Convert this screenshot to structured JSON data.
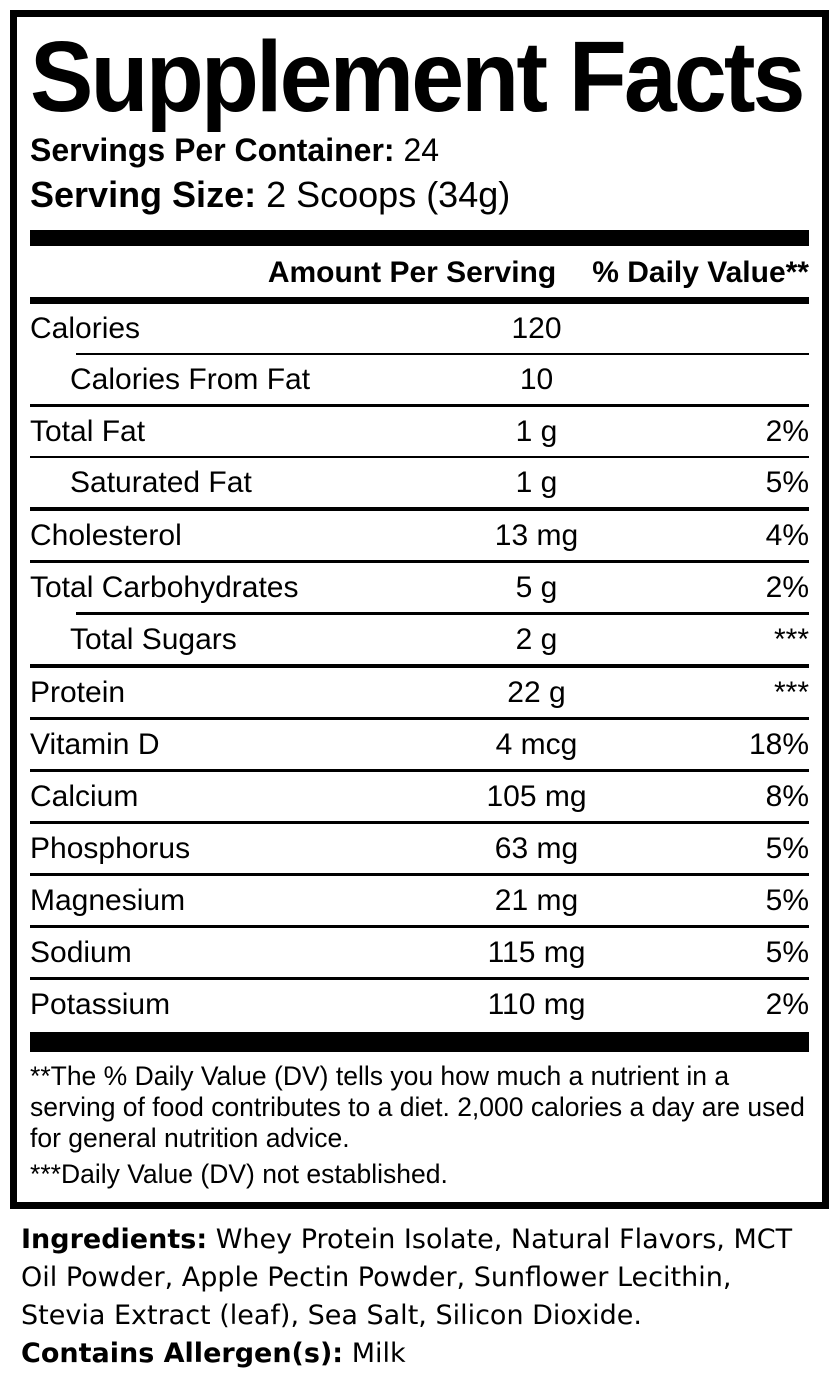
{
  "colors": {
    "text": "#000000",
    "background": "#ffffff",
    "rule": "#000000"
  },
  "supplement": {
    "title": "Supplement Facts",
    "servings_per_container_label": "Servings Per Container:",
    "servings_per_container_value": "24",
    "serving_size_label": "Serving Size:",
    "serving_size_value": "2 Scoops (34g)",
    "col_amount_header": "Amount Per Serving",
    "col_dv_header": "% Daily Value**",
    "rows": [
      {
        "name": "Calories",
        "amount": "120",
        "dv": ""
      },
      {
        "name": "Calories From Fat",
        "amount": "10",
        "dv": ""
      },
      {
        "name": "Total Fat",
        "amount": "1 g",
        "dv": "2%"
      },
      {
        "name": "Saturated Fat",
        "amount": "1 g",
        "dv": "5%"
      },
      {
        "name": "Cholesterol",
        "amount": "13 mg",
        "dv": "4%"
      },
      {
        "name": "Total Carbohydrates",
        "amount": "5 g",
        "dv": "2%"
      },
      {
        "name": "Total Sugars",
        "amount": "2 g",
        "dv": "***"
      },
      {
        "name": "Protein",
        "amount": "22 g",
        "dv": "***"
      },
      {
        "name": "Vitamin D",
        "amount": "4 mcg",
        "dv": "18%"
      },
      {
        "name": "Calcium",
        "amount": "105 mg",
        "dv": "8%"
      },
      {
        "name": "Phosphorus",
        "amount": "63 mg",
        "dv": "5%"
      },
      {
        "name": "Magnesium",
        "amount": "21 mg",
        "dv": "5%"
      },
      {
        "name": "Sodium",
        "amount": "115 mg",
        "dv": "5%"
      },
      {
        "name": "Potassium",
        "amount": "110 mg",
        "dv": "2%"
      }
    ],
    "footnote_dv": "**The % Daily Value (DV) tells you how much a nutrient in a serving of food contributes to a diet. 2,000 calories a day are used for general nutrition advice.",
    "footnote_not_established": "***Daily Value (DV) not established."
  },
  "ingredients": {
    "label": "Ingredients:",
    "text": " Whey Protein Isolate, Natural Flavors, MCT Oil Powder, Apple Pectin Powder, Sunflower Lecithin, Stevia Extract (leaf), Sea Salt, Silicon Dioxide.",
    "allergen_label": "Contains Allergen(s):",
    "allergen_value": " Milk"
  }
}
